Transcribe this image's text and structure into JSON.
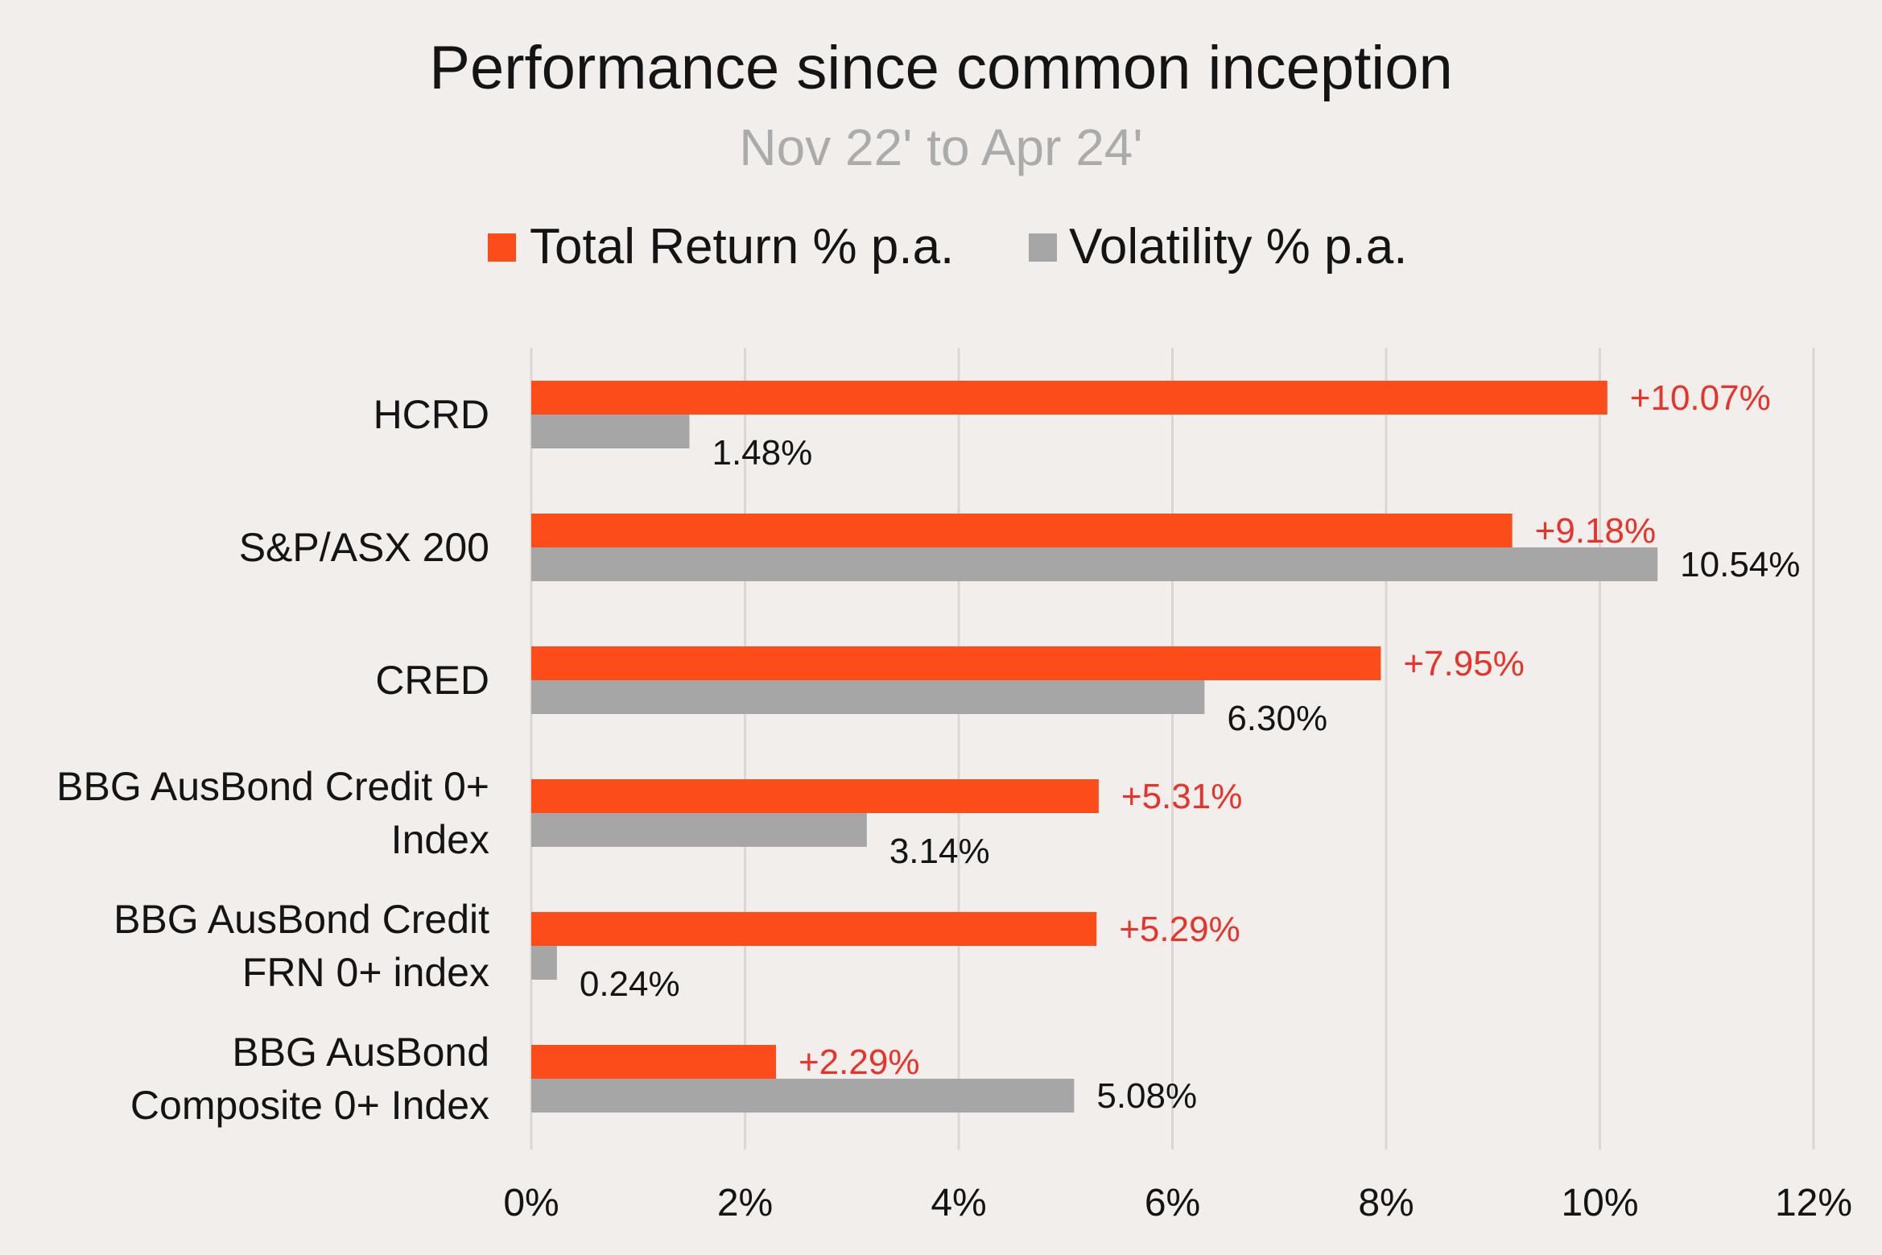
{
  "background": "#f1eeeb",
  "chart_data": {
    "type": "bar",
    "orientation": "horizontal",
    "title": "Performance since common inception",
    "subtitle": "Nov 22' to Apr 24'",
    "categories": [
      [
        "HCRD"
      ],
      [
        "S&P/ASX 200"
      ],
      [
        "CRED"
      ],
      [
        "BBG AusBond Credit 0+",
        "Index"
      ],
      [
        "BBG AusBond Credit",
        "FRN 0+ index"
      ],
      [
        "BBG AusBond",
        "Composite 0+ Index"
      ]
    ],
    "series": [
      {
        "name": "Total Return % p.a.",
        "color": "#fc4c1a",
        "label_color": "#e8332a",
        "values": [
          10.07,
          9.18,
          7.95,
          5.31,
          5.29,
          2.29
        ],
        "labels": [
          "+10.07%",
          "+9.18%",
          "+7.95%",
          "+5.31%",
          "+5.29%",
          "+2.29%"
        ]
      },
      {
        "name": "Volatility % p.a.",
        "color": "#a6a6a6",
        "label_color": "#141414",
        "values": [
          1.48,
          10.54,
          6.3,
          3.14,
          0.24,
          5.08
        ],
        "labels": [
          "1.48%",
          "10.54%",
          "6.30%",
          "3.14%",
          "0.24%",
          "5.08%"
        ]
      }
    ],
    "xlim": [
      0,
      12
    ],
    "xticks": [
      0,
      2,
      4,
      6,
      8,
      10,
      12
    ],
    "xtick_labels": [
      "0%",
      "2%",
      "4%",
      "6%",
      "8%",
      "10%",
      "12%"
    ],
    "xlabel": "",
    "ylabel": "",
    "grid": "vertical",
    "grid_color": "#d9d6d3",
    "legend_position": "top-center"
  }
}
